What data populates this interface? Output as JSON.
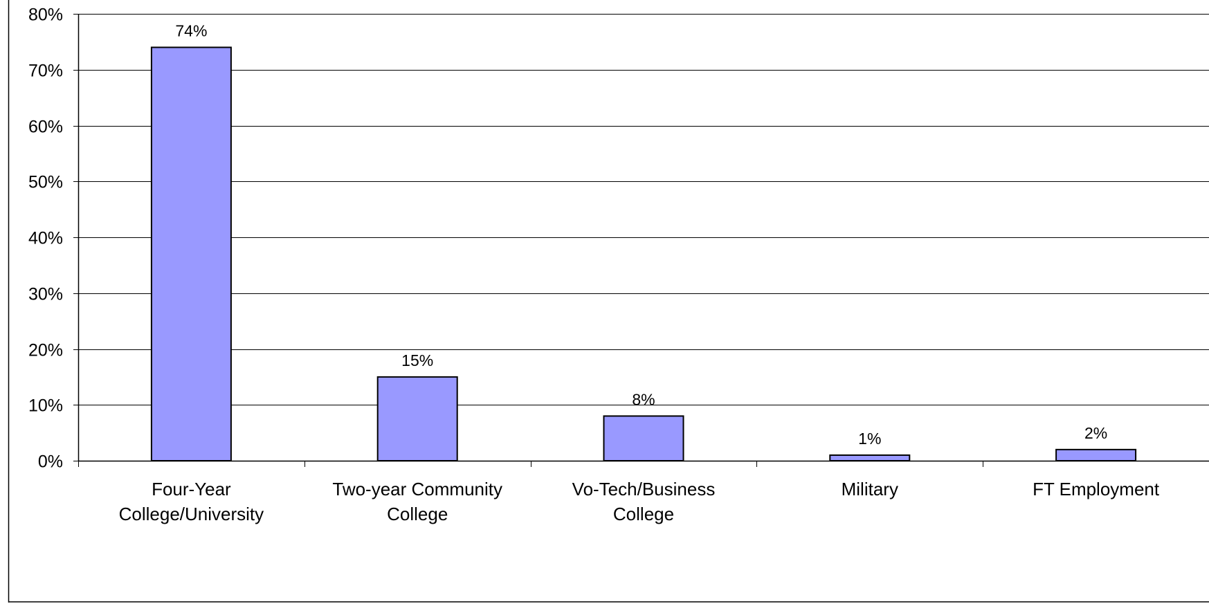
{
  "chart_data": {
    "type": "bar",
    "title": "",
    "xlabel": "",
    "ylabel": "",
    "categories": [
      [
        "Four-Year",
        "College/University"
      ],
      [
        "Two-year Community",
        "College"
      ],
      [
        "Vo-Tech/Business",
        "College"
      ],
      [
        "Military"
      ],
      [
        "FT Employment"
      ]
    ],
    "values": [
      74,
      15,
      8,
      1,
      2
    ],
    "data_labels": [
      "74%",
      "15%",
      "8%",
      "1%",
      "2%"
    ],
    "ylim": [
      0,
      80
    ],
    "yticks": [
      0,
      10,
      20,
      30,
      40,
      50,
      60,
      70,
      80
    ],
    "ytick_labels": [
      "0%",
      "10%",
      "20%",
      "30%",
      "40%",
      "50%",
      "60%",
      "70%",
      "80%"
    ],
    "grid": true,
    "legend": "none",
    "colors": {
      "bar_fill": "#9999ff",
      "bar_stroke": "#000000",
      "grid": "#000000",
      "axis": "#000000",
      "text": "#000000",
      "background": "#ffffff"
    }
  }
}
